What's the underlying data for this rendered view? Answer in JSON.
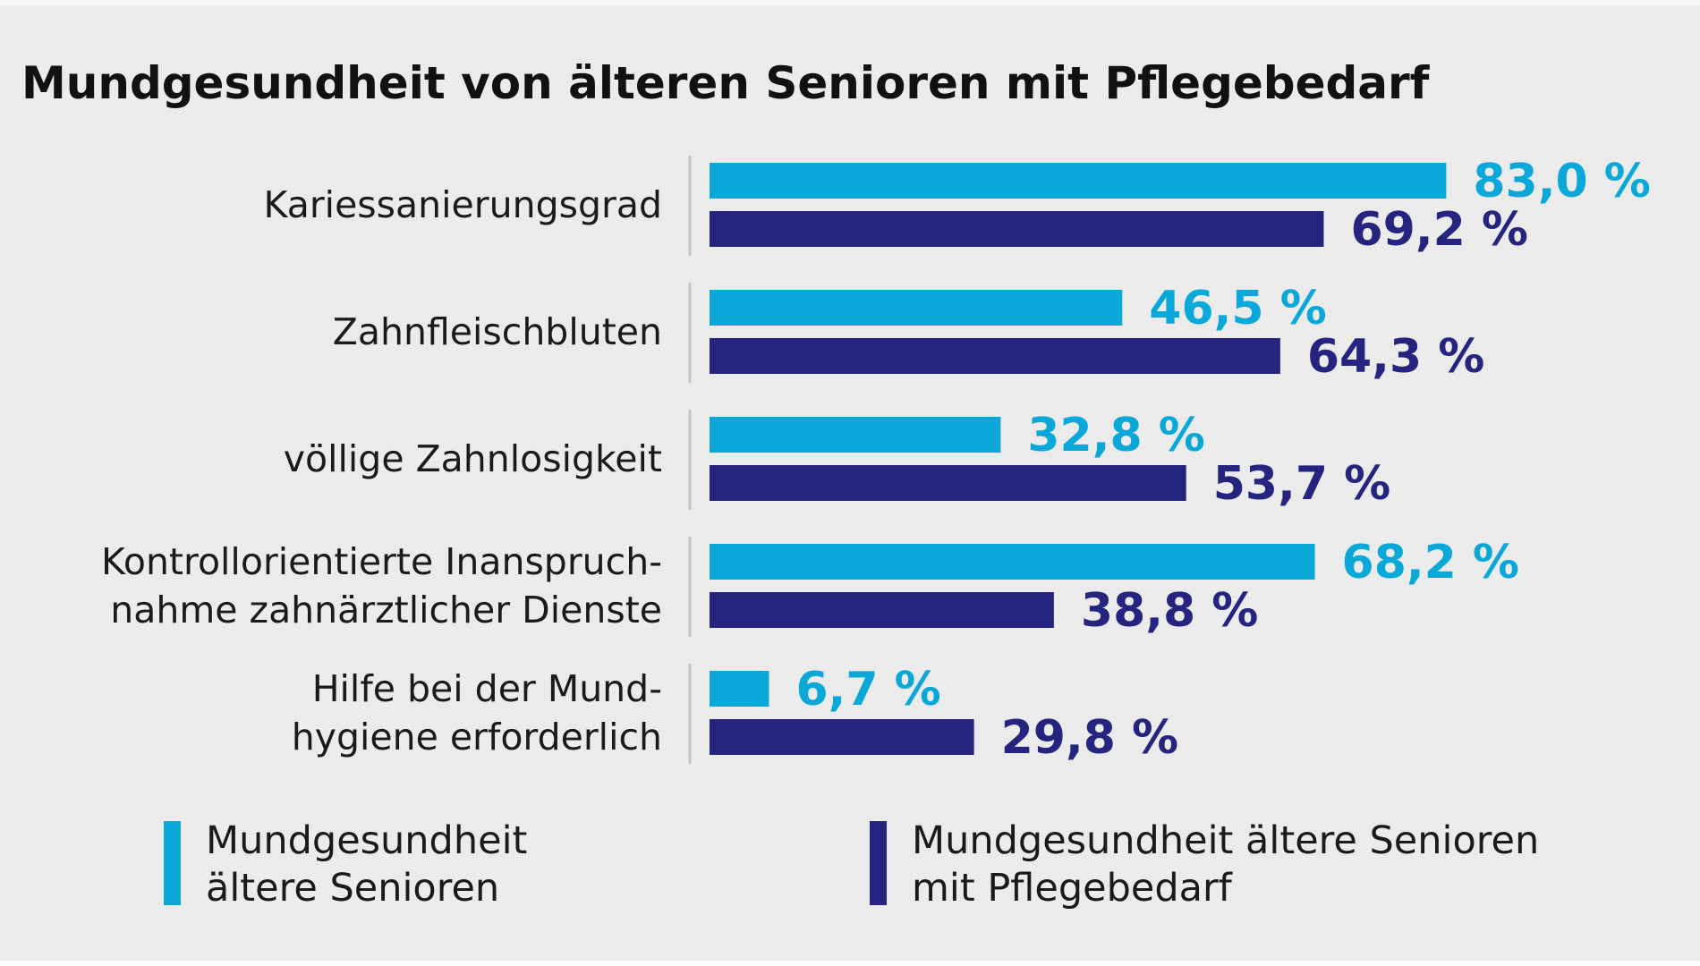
{
  "chart_data": {
    "type": "bar",
    "orientation": "horizontal",
    "title": "Mundgesundheit von älteren Senioren mit Pflegebedarf",
    "categories": [
      [
        "Kariessanierungsgrad"
      ],
      [
        "Zahnfleischbluten"
      ],
      [
        "völlige Zahnlosigkeit"
      ],
      [
        "Kontrollorientierte Inanspruch-",
        "nahme zahnärztlicher Dienste"
      ],
      [
        "Hilfe bei der Mund-",
        "hygiene erforderlich"
      ]
    ],
    "series": [
      {
        "name": "Mundgesundheit ältere Senioren",
        "color": "#0aa8d8",
        "values": [
          83.0,
          46.5,
          32.8,
          68.2,
          6.7
        ],
        "labels": [
          "83,0 %",
          "46,5 %",
          "32,8 %",
          "68,2 %",
          "6,7 %"
        ]
      },
      {
        "name": "Mundgesundheit ältere Senioren mit Pflegebedarf",
        "color": "#252580",
        "values": [
          69.2,
          64.3,
          53.7,
          38.8,
          29.8
        ],
        "labels": [
          "69,2 %",
          "64,3 %",
          "53,7 %",
          "38,8 %",
          "29,8 %"
        ]
      }
    ],
    "xlabel": "",
    "ylabel": "",
    "xlim": [
      0,
      100
    ],
    "grid": false,
    "legend_position": "bottom"
  },
  "legend": {
    "items": [
      {
        "lines": [
          "Mundgesundheit",
          "ältere Senioren"
        ],
        "color": "#0aa8d8"
      },
      {
        "lines": [
          "Mundgesundheit ältere Senioren",
          "mit Pflegebedarf"
        ],
        "color": "#252580"
      }
    ]
  },
  "colors": {
    "background": "#ebebeb",
    "separator": "#c4c4c4"
  }
}
